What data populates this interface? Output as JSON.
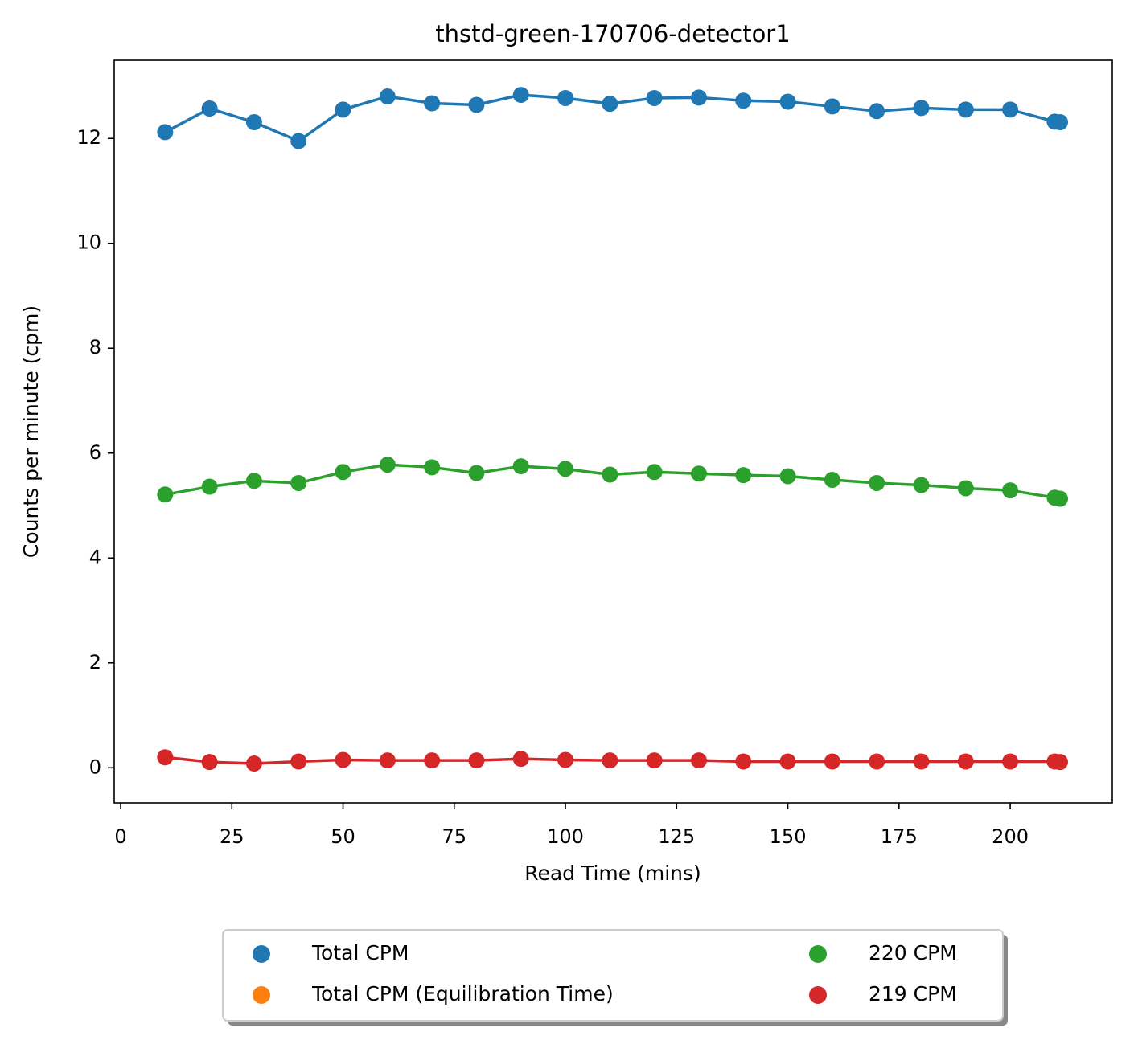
{
  "chart_data": {
    "type": "line",
    "title": "thstd-green-170706-detector1",
    "x_label": "Read Time (mins)",
    "y_label": "Counts per minute (cpm)",
    "x": [
      10,
      20,
      30,
      40,
      50,
      60,
      70,
      80,
      90,
      100,
      110,
      120,
      130,
      140,
      150,
      160,
      170,
      180,
      190,
      200,
      210,
      211.2
    ],
    "series": [
      {
        "name": "Total CPM",
        "color": "#1f77b4",
        "values": [
          12.12,
          12.57,
          12.31,
          11.95,
          12.55,
          12.8,
          12.67,
          12.64,
          12.83,
          12.77,
          12.66,
          12.77,
          12.78,
          12.72,
          12.7,
          12.61,
          12.52,
          12.58,
          12.55,
          12.55,
          12.32,
          12.31
        ]
      },
      {
        "name": "Total CPM (Equilibration Time)",
        "color": "#ff7f0e",
        "values": [
          null,
          null,
          null,
          null,
          null,
          null,
          null,
          null,
          null,
          null,
          null,
          null,
          null,
          null,
          null,
          null,
          null,
          null,
          null,
          null,
          null,
          null
        ]
      },
      {
        "name": "220 CPM",
        "color": "#2ca02c",
        "values": [
          5.21,
          5.36,
          5.47,
          5.43,
          5.64,
          5.78,
          5.73,
          5.62,
          5.75,
          5.7,
          5.59,
          5.64,
          5.61,
          5.58,
          5.56,
          5.49,
          5.43,
          5.39,
          5.33,
          5.29,
          5.15,
          5.13
        ]
      },
      {
        "name": "219 CPM",
        "color": "#d62728",
        "values": [
          0.2,
          0.11,
          0.08,
          0.12,
          0.15,
          0.14,
          0.14,
          0.14,
          0.17,
          0.15,
          0.14,
          0.14,
          0.14,
          0.12,
          0.12,
          0.12,
          0.12,
          0.12,
          0.12,
          0.12,
          0.12,
          0.11
        ]
      }
    ],
    "xlim": [
      -1.45,
      222.95
    ],
    "ylim": [
      -0.67,
      13.49
    ],
    "xticks": [
      0,
      25,
      50,
      75,
      100,
      125,
      150,
      175,
      200
    ],
    "yticks": [
      0,
      2,
      4,
      6,
      8,
      10,
      12
    ],
    "grid": false,
    "legend": "below",
    "legend_columns": 2,
    "legend_shadow": true
  }
}
